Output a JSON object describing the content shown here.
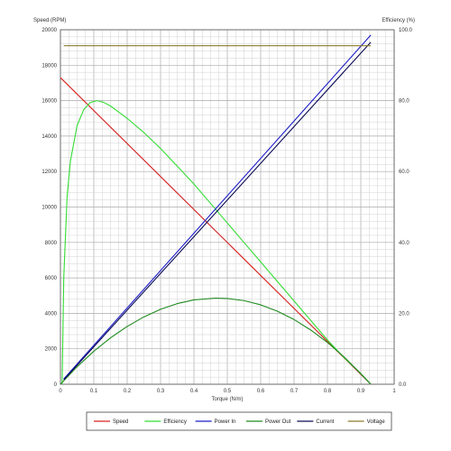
{
  "chart_data": {
    "type": "line",
    "title": "",
    "xlabel": "Torque (N/m)",
    "ylabel_left": "Speed (RPM)",
    "ylabel_right": "Efficiency (%)",
    "xlim": [
      0,
      1
    ],
    "ylim_left": [
      0,
      20000
    ],
    "ylim_right": [
      0,
      100
    ],
    "x_ticks": [
      "0",
      "0.1",
      "0.2",
      "0.3",
      "0.4",
      "0.5",
      "0.6",
      "0.7",
      "0.8",
      "0.9",
      "1"
    ],
    "y_ticks_left": [
      "0",
      "2000",
      "4000",
      "6000",
      "8000",
      "10000",
      "12000",
      "14000",
      "16000",
      "18000",
      "20000"
    ],
    "y_ticks_right": [
      "0.0",
      "20.0",
      "40.0",
      "60.0",
      "80.0",
      "100.0"
    ],
    "grid": true,
    "legend_placement": "bottom",
    "series": [
      {
        "name": "Speed",
        "axis": "left",
        "color": "#d62020",
        "x": [
          0,
          0.93
        ],
        "y": [
          17300,
          0
        ]
      },
      {
        "name": "Efficiency",
        "axis": "right",
        "color": "#33dd33",
        "x": [
          0.005,
          0.01,
          0.02,
          0.03,
          0.05,
          0.07,
          0.09,
          0.11,
          0.13,
          0.15,
          0.2,
          0.25,
          0.3,
          0.35,
          0.4,
          0.45,
          0.5,
          0.55,
          0.6,
          0.65,
          0.7,
          0.75,
          0.8,
          0.85,
          0.9,
          0.93
        ],
        "y": [
          0,
          30,
          53,
          63,
          73,
          77.5,
          79.5,
          80,
          79.5,
          78.5,
          75,
          71,
          66.5,
          61.5,
          56.5,
          51,
          45.5,
          40,
          34.5,
          29,
          23.5,
          18,
          12.5,
          7.5,
          3,
          0
        ]
      },
      {
        "name": "Power In",
        "axis": "left",
        "color": "#1c1cc8",
        "x": [
          0.01,
          0.93
        ],
        "y": [
          300,
          19700
        ]
      },
      {
        "name": "Power Out",
        "axis": "left",
        "color": "#1f8a1f",
        "x": [
          0,
          0.05,
          0.1,
          0.15,
          0.2,
          0.25,
          0.3,
          0.35,
          0.4,
          0.465,
          0.5,
          0.55,
          0.6,
          0.65,
          0.7,
          0.75,
          0.8,
          0.85,
          0.9,
          0.93
        ],
        "y": [
          0,
          990,
          1860,
          2620,
          3260,
          3800,
          4230,
          4550,
          4760,
          4860,
          4840,
          4720,
          4480,
          4120,
          3650,
          3060,
          2360,
          1540,
          600,
          0
        ]
      },
      {
        "name": "Current",
        "axis": "left",
        "color": "#0a0a55",
        "x": [
          0.01,
          0.93
        ],
        "y": [
          250,
          19300
        ]
      },
      {
        "name": "Voltage",
        "axis": "left",
        "color": "#8b7a2a",
        "x": [
          0.01,
          0.93
        ],
        "y": [
          19100,
          19100
        ]
      }
    ]
  }
}
